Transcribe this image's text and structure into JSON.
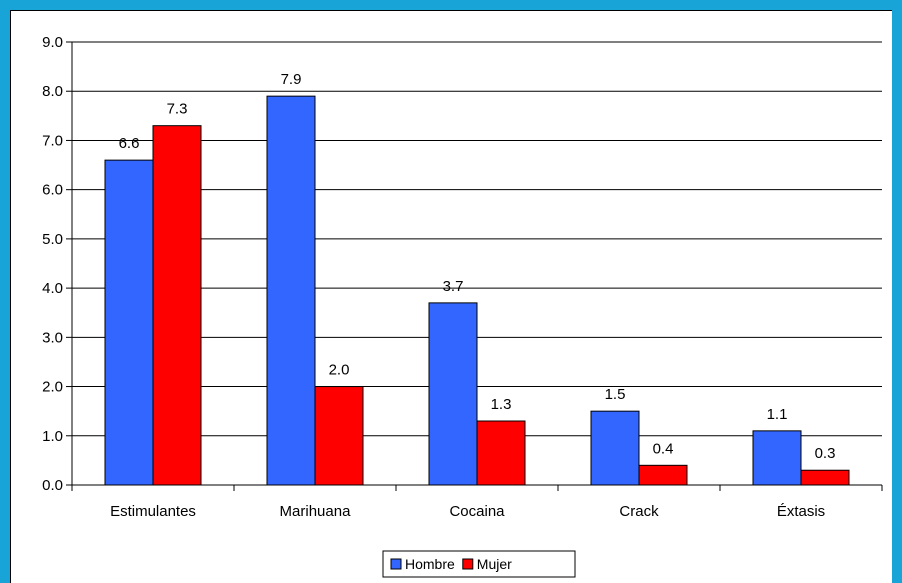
{
  "chart_data": {
    "type": "bar",
    "categories": [
      "Estimulantes",
      "Marihuana",
      "Cocaina",
      "Crack",
      "Éxtasis"
    ],
    "series": [
      {
        "name": "Hombre",
        "color": "#3366ff",
        "values": [
          6.6,
          7.9,
          3.7,
          1.5,
          1.1
        ],
        "labels": [
          "6.6",
          "7.9",
          "3.7",
          "1.5",
          "1.1"
        ]
      },
      {
        "name": "Mujer",
        "color": "#ff0000",
        "values": [
          7.3,
          2.0,
          1.3,
          0.4,
          0.3
        ],
        "labels": [
          "7.3",
          "2.0",
          "1.3",
          "0.4",
          "0.3"
        ]
      }
    ],
    "ylim": [
      0,
      9
    ],
    "yticks": [
      "0.0",
      "1.0",
      "2.0",
      "3.0",
      "4.0",
      "5.0",
      "6.0",
      "7.0",
      "8.0",
      "9.0"
    ],
    "grid": true,
    "legend_position": "bottom-center",
    "data_labels": true
  }
}
